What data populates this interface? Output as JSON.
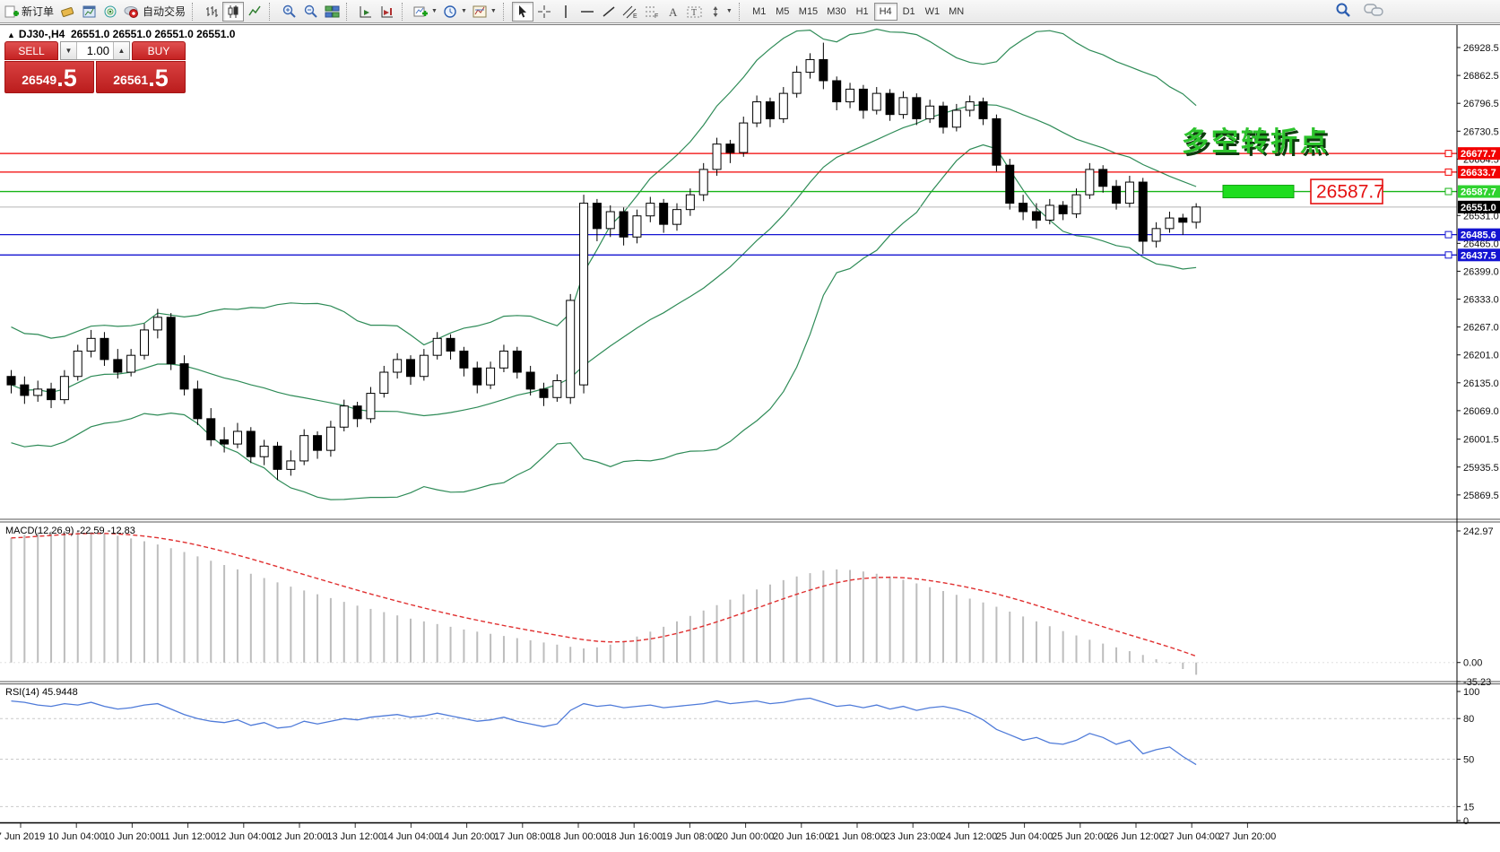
{
  "icons": {
    "collapse": "▲",
    "caret_down": "▼",
    "caret_up": "▲",
    "dropdown": "▼"
  },
  "toolbar": {
    "new_order_label": "新订单",
    "auto_trading_label": "自动交易",
    "timeframes": [
      "M1",
      "M5",
      "M15",
      "M30",
      "H1",
      "H4",
      "D1",
      "W1",
      "MN"
    ],
    "active_timeframe": "H4"
  },
  "chart": {
    "symbol_period": "DJ30-,H4",
    "ohlc_line": "26551.0 26551.0 26551.0 26551.0"
  },
  "one_click": {
    "sell_label": "SELL",
    "buy_label": "BUY",
    "volume": "1.00",
    "sell_price_main": "26549",
    "sell_price_pips": ".5",
    "buy_price_main": "26561",
    "buy_price_pips": ".5"
  },
  "annotation": {
    "text": "多空转折点",
    "color": "#2cc32c"
  },
  "price_axis": {
    "ticks": [
      "26928.5",
      "26862.5",
      "26796.5",
      "26730.5",
      "26664.5",
      "26531.0",
      "26465.0",
      "26399.0",
      "26333.0",
      "26267.0",
      "26201.0",
      "26135.0",
      "26069.0",
      "26001.5",
      "25935.5",
      "25869.5"
    ],
    "labels": [
      {
        "text": "26677.7",
        "price": 26677.7,
        "bg": "#f20000",
        "fg": "#ffffff"
      },
      {
        "text": "26633.7",
        "price": 26633.7,
        "bg": "#f20000",
        "fg": "#ffffff"
      },
      {
        "text": "26587.7",
        "price": 26587.7,
        "bg": "#2fd32f",
        "fg": "#ffffff"
      },
      {
        "text": "26551.0",
        "price": 26551.0,
        "bg": "#000000",
        "fg": "#ffffff"
      },
      {
        "text": "26485.6",
        "price": 26485.6,
        "bg": "#1414d2",
        "fg": "#ffffff"
      },
      {
        "text": "26437.5",
        "price": 26437.5,
        "bg": "#1414d2",
        "fg": "#ffffff"
      }
    ]
  },
  "objects": {
    "hlines": [
      {
        "price": 26677.7,
        "color": "#f20000"
      },
      {
        "price": 26633.7,
        "color": "#f20000"
      },
      {
        "price": 26587.7,
        "color": "#17b517"
      },
      {
        "price": 26485.6,
        "color": "#1414d2"
      },
      {
        "price": 26437.5,
        "color": "#1414d2"
      }
    ],
    "current_price": {
      "value": 26551.0,
      "line_color": "#b5b5b5"
    },
    "band_marker": {
      "label": "26587.7",
      "price": 26587.7,
      "band_color": "#1fdd1f",
      "box_color": "#e51212"
    }
  },
  "time_axis": {
    "labels": [
      "7 Jun 2019",
      "10 Jun 04:00",
      "10 Jun 20:00",
      "11 Jun 12:00",
      "12 Jun 04:00",
      "12 Jun 20:00",
      "13 Jun 12:00",
      "14 Jun 04:00",
      "14 Jun 20:00",
      "17 Jun 08:00",
      "18 Jun 00:00",
      "18 Jun 16:00",
      "19 Jun 08:00",
      "20 Jun 00:00",
      "20 Jun 16:00",
      "21 Jun 08:00",
      "23 Jun 23:00",
      "24 Jun 12:00",
      "25 Jun 04:00",
      "25 Jun 20:00",
      "26 Jun 12:00",
      "27 Jun 04:00",
      "27 Jun 20:00"
    ]
  },
  "chart_data": {
    "type": "candlestick",
    "symbol": "DJ30-",
    "period": "H4",
    "price_range": {
      "top": 26981.6,
      "bottom": 25814.0
    },
    "candles": [
      [
        26150,
        26165,
        26110,
        26130
      ],
      [
        26130,
        26150,
        26085,
        26105
      ],
      [
        26105,
        26140,
        26090,
        26120
      ],
      [
        26120,
        26135,
        26075,
        26095
      ],
      [
        26095,
        26165,
        26085,
        26150
      ],
      [
        26150,
        26225,
        26140,
        26210
      ],
      [
        26210,
        26260,
        26195,
        26240
      ],
      [
        26240,
        26255,
        26175,
        26190
      ],
      [
        26190,
        26215,
        26145,
        26160
      ],
      [
        26160,
        26215,
        26150,
        26200
      ],
      [
        26200,
        26275,
        26190,
        26260
      ],
      [
        26260,
        26310,
        26240,
        26290
      ],
      [
        26290,
        26300,
        26165,
        26180
      ],
      [
        26180,
        26200,
        26105,
        26120
      ],
      [
        26120,
        26140,
        26035,
        26050
      ],
      [
        26050,
        26075,
        25985,
        26000
      ],
      [
        26000,
        26030,
        25970,
        25990
      ],
      [
        25990,
        26040,
        25980,
        26020
      ],
      [
        26020,
        26030,
        25945,
        25960
      ],
      [
        25960,
        26000,
        25940,
        25985
      ],
      [
        25985,
        25995,
        25905,
        25930
      ],
      [
        25930,
        25975,
        25915,
        25950
      ],
      [
        25950,
        26025,
        25940,
        26010
      ],
      [
        26010,
        26020,
        25955,
        25975
      ],
      [
        25975,
        26045,
        25960,
        26030
      ],
      [
        26030,
        26095,
        26020,
        26080
      ],
      [
        26080,
        26090,
        26030,
        26050
      ],
      [
        26050,
        26125,
        26040,
        26110
      ],
      [
        26110,
        26175,
        26100,
        26160
      ],
      [
        26160,
        26205,
        26145,
        26190
      ],
      [
        26190,
        26200,
        26130,
        26150
      ],
      [
        26150,
        26215,
        26140,
        26200
      ],
      [
        26200,
        26255,
        26190,
        26240
      ],
      [
        26240,
        26250,
        26190,
        26210
      ],
      [
        26210,
        26220,
        26150,
        26170
      ],
      [
        26170,
        26185,
        26110,
        26130
      ],
      [
        26130,
        26185,
        26120,
        26170
      ],
      [
        26170,
        26225,
        26160,
        26210
      ],
      [
        26210,
        26220,
        26145,
        26160
      ],
      [
        26160,
        26175,
        26105,
        26120
      ],
      [
        26120,
        26135,
        26080,
        26100
      ],
      [
        26100,
        26155,
        26090,
        26140
      ],
      [
        26100,
        26345,
        26085,
        26330
      ],
      [
        26130,
        26580,
        26110,
        26560
      ],
      [
        26560,
        26570,
        26470,
        26500
      ],
      [
        26500,
        26555,
        26480,
        26540
      ],
      [
        26540,
        26550,
        26460,
        26480
      ],
      [
        26480,
        26545,
        26465,
        26530
      ],
      [
        26530,
        26575,
        26515,
        26560
      ],
      [
        26560,
        26570,
        26490,
        26510
      ],
      [
        26510,
        26560,
        26495,
        26545
      ],
      [
        26545,
        26595,
        26530,
        26580
      ],
      [
        26580,
        26655,
        26565,
        26640
      ],
      [
        26640,
        26715,
        26625,
        26700
      ],
      [
        26700,
        26710,
        26655,
        26680
      ],
      [
        26680,
        26765,
        26670,
        26750
      ],
      [
        26750,
        26815,
        26740,
        26800
      ],
      [
        26800,
        26810,
        26740,
        26760
      ],
      [
        26760,
        26835,
        26750,
        26820
      ],
      [
        26820,
        26885,
        26810,
        26870
      ],
      [
        26870,
        26915,
        26855,
        26900
      ],
      [
        26900,
        26940,
        26830,
        26850
      ],
      [
        26850,
        26860,
        26780,
        26800
      ],
      [
        26800,
        26845,
        26785,
        26830
      ],
      [
        26830,
        26840,
        26760,
        26780
      ],
      [
        26780,
        26835,
        26770,
        26820
      ],
      [
        26820,
        26830,
        26755,
        26770
      ],
      [
        26770,
        26825,
        26760,
        26810
      ],
      [
        26810,
        26820,
        26745,
        26760
      ],
      [
        26760,
        26805,
        26750,
        26790
      ],
      [
        26790,
        26800,
        26725,
        26740
      ],
      [
        26740,
        26795,
        26730,
        26780
      ],
      [
        26780,
        26815,
        26765,
        26800
      ],
      [
        26800,
        26810,
        26745,
        26760
      ],
      [
        26760,
        26770,
        26635,
        26650
      ],
      [
        26650,
        26665,
        26545,
        26560
      ],
      [
        26560,
        26580,
        26520,
        26540
      ],
      [
        26540,
        26560,
        26500,
        26520
      ],
      [
        26520,
        26570,
        26510,
        26555
      ],
      [
        26555,
        26565,
        26520,
        26535
      ],
      [
        26535,
        26595,
        26525,
        26580
      ],
      [
        26580,
        26655,
        26570,
        26640
      ],
      [
        26640,
        26650,
        26585,
        26600
      ],
      [
        26600,
        26615,
        26545,
        26560
      ],
      [
        26560,
        26625,
        26550,
        26610
      ],
      [
        26610,
        26620,
        26440,
        26470
      ],
      [
        26470,
        26515,
        26455,
        26500
      ],
      [
        26500,
        26540,
        26490,
        26525
      ],
      [
        26525,
        26535,
        26485,
        26515
      ],
      [
        26515,
        26560,
        26500,
        26551
      ]
    ],
    "indicators": {
      "bollinger": {
        "period": 20,
        "deviation": 2,
        "color": "#2e8b57"
      },
      "macd": {
        "label": "MACD(12,26,9) -22.59 -12.83",
        "scale_max": 242.97,
        "scale_min": -35.23,
        "axis": [
          "242.97",
          "0.00",
          "-35.23"
        ],
        "bar_color": "#bdbdbd",
        "signal_color": "#e03030",
        "values": [
          230,
          236,
          240,
          242,
          243,
          242.97,
          241,
          238,
          234,
          229,
          224,
          218,
          211,
          204,
          196,
          188,
          180,
          172,
          164,
          156,
          148,
          140,
          133,
          126,
          119,
          112,
          105,
          99,
          93,
          87,
          81,
          76,
          71,
          66,
          61,
          57,
          53,
          49,
          45,
          41,
          37,
          33,
          29,
          26,
          28,
          33,
          40,
          48,
          57,
          66,
          76,
          86,
          96,
          106,
          116,
          126,
          135,
          144,
          152,
          159,
          165,
          170,
          172,
          171,
          168,
          164,
          159,
          153,
          146,
          139,
          132,
          125,
          118,
          111,
          103,
          94,
          85,
          76,
          67,
          58,
          50,
          42,
          35,
          28,
          21,
          14,
          6,
          -2,
          -12,
          -22.59
        ]
      },
      "rsi": {
        "label": "RSI(14) 45.9448",
        "levels": [
          80,
          50,
          15
        ],
        "axis": [
          "100",
          "80",
          "50",
          "15",
          "0"
        ],
        "line_color": "#4f7bd9",
        "values": [
          93,
          92,
          90,
          89,
          91,
          90,
          92,
          89,
          87,
          88,
          90,
          91,
          87,
          83,
          80,
          78,
          77,
          79,
          75,
          77,
          73,
          74,
          78,
          76,
          78,
          80,
          79,
          81,
          82,
          83,
          81,
          82,
          84,
          82,
          80,
          78,
          79,
          81,
          78,
          76,
          74,
          76,
          86,
          91,
          89,
          90,
          88,
          89,
          90,
          88,
          89,
          90,
          91,
          93,
          91,
          92,
          93,
          91,
          92,
          94,
          95,
          92,
          89,
          90,
          88,
          90,
          87,
          89,
          86,
          88,
          89,
          87,
          84,
          79,
          72,
          68,
          64,
          66,
          62,
          61,
          64,
          69,
          66,
          61,
          64,
          54,
          57,
          59,
          52,
          45.9448
        ]
      }
    }
  }
}
